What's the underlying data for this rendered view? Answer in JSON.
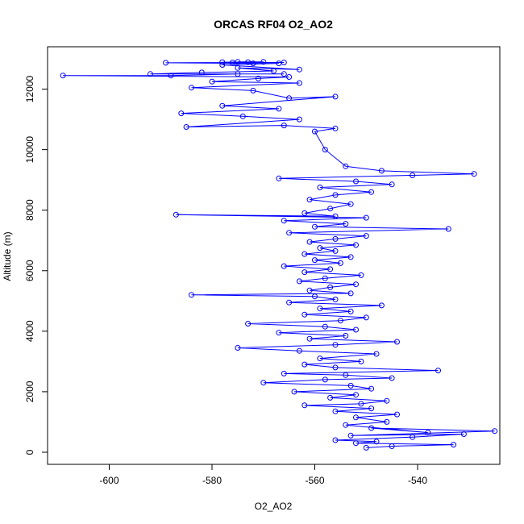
{
  "chart_data": {
    "type": "scatter",
    "title": "ORCAS RF04 O2_AO2",
    "xlabel": "O2_AO2",
    "ylabel": "Altitude (m)",
    "xlim": [
      -612,
      -524
    ],
    "ylim": [
      -400,
      13400
    ],
    "x_ticks": [
      -600,
      -580,
      -560,
      -540
    ],
    "x_tick_labels": [
      "-600",
      "-580",
      "-560",
      "-540"
    ],
    "y_ticks": [
      0,
      2000,
      4000,
      6000,
      8000,
      10000,
      12000
    ],
    "y_tick_labels": [
      "0",
      "2000",
      "4000",
      "6000",
      "8000",
      "10000",
      "12000"
    ],
    "grid": false,
    "series": [
      {
        "color": "#0000ff",
        "marker": "open-circle",
        "connected": true,
        "points": [
          [
            -550,
            150
          ],
          [
            -545,
            200
          ],
          [
            -533,
            250
          ],
          [
            -552,
            300
          ],
          [
            -548,
            350
          ],
          [
            -556,
            400
          ],
          [
            -541,
            500
          ],
          [
            -531,
            600
          ],
          [
            -553,
            550
          ],
          [
            -525,
            700
          ],
          [
            -549,
            800
          ],
          [
            -538,
            650
          ],
          [
            -554,
            900
          ],
          [
            -546,
            1000
          ],
          [
            -552,
            1150
          ],
          [
            -544,
            1250
          ],
          [
            -556,
            1350
          ],
          [
            -549,
            1450
          ],
          [
            -562,
            1550
          ],
          [
            -551,
            1600
          ],
          [
            -546,
            1700
          ],
          [
            -557,
            1800
          ],
          [
            -552,
            1900
          ],
          [
            -564,
            2000
          ],
          [
            -549,
            2100
          ],
          [
            -553,
            2200
          ],
          [
            -570,
            2300
          ],
          [
            -558,
            2400
          ],
          [
            -545,
            2450
          ],
          [
            -554,
            2550
          ],
          [
            -566,
            2600
          ],
          [
            -536,
            2700
          ],
          [
            -556,
            2800
          ],
          [
            -562,
            2900
          ],
          [
            -551,
            3000
          ],
          [
            -559,
            3100
          ],
          [
            -548,
            3250
          ],
          [
            -563,
            3350
          ],
          [
            -575,
            3450
          ],
          [
            -556,
            3550
          ],
          [
            -544,
            3650
          ],
          [
            -561,
            3750
          ],
          [
            -554,
            3850
          ],
          [
            -567,
            3950
          ],
          [
            -552,
            4050
          ],
          [
            -558,
            4150
          ],
          [
            -573,
            4250
          ],
          [
            -555,
            4350
          ],
          [
            -550,
            4450
          ],
          [
            -562,
            4550
          ],
          [
            -553,
            4650
          ],
          [
            -559,
            4750
          ],
          [
            -547,
            4850
          ],
          [
            -565,
            4950
          ],
          [
            -556,
            5050
          ],
          [
            -560,
            5150
          ],
          [
            -584,
            5200
          ],
          [
            -553,
            5250
          ],
          [
            -561,
            5350
          ],
          [
            -557,
            5450
          ],
          [
            -552,
            5550
          ],
          [
            -563,
            5650
          ],
          [
            -558,
            5750
          ],
          [
            -551,
            5850
          ],
          [
            -562,
            5950
          ],
          [
            -557,
            6050
          ],
          [
            -566,
            6150
          ],
          [
            -555,
            6250
          ],
          [
            -560,
            6350
          ],
          [
            -553,
            6450
          ],
          [
            -562,
            6550
          ],
          [
            -556,
            6650
          ],
          [
            -559,
            6750
          ],
          [
            -552,
            6850
          ],
          [
            -561,
            6950
          ],
          [
            -556,
            7050
          ],
          [
            -550,
            7150
          ],
          [
            -565,
            7250
          ],
          [
            -534,
            7380
          ],
          [
            -560,
            7450
          ],
          [
            -554,
            7550
          ],
          [
            -566,
            7650
          ],
          [
            -550,
            7750
          ],
          [
            -587,
            7850
          ],
          [
            -556,
            7800
          ],
          [
            -562,
            7900
          ],
          [
            -557,
            8050
          ],
          [
            -553,
            8200
          ],
          [
            -561,
            8350
          ],
          [
            -556,
            8500
          ],
          [
            -549,
            8600
          ],
          [
            -559,
            8750
          ],
          [
            -545,
            8850
          ],
          [
            -552,
            8950
          ],
          [
            -567,
            9050
          ],
          [
            -541,
            9150
          ],
          [
            -529,
            9200
          ],
          [
            -547,
            9300
          ],
          [
            -554,
            9450
          ],
          [
            -558,
            10000
          ],
          [
            -560,
            10600
          ],
          [
            -556,
            10700
          ],
          [
            -566,
            10800
          ],
          [
            -585,
            10750
          ],
          [
            -563,
            11000
          ],
          [
            -574,
            11100
          ],
          [
            -586,
            11200
          ],
          [
            -567,
            11350
          ],
          [
            -578,
            11450
          ],
          [
            -556,
            11750
          ],
          [
            -565,
            11700
          ],
          [
            -572,
            11950
          ],
          [
            -584,
            12050
          ],
          [
            -563,
            12200
          ],
          [
            -580,
            12250
          ],
          [
            -571,
            12350
          ],
          [
            -565,
            12400
          ],
          [
            -609,
            12450
          ],
          [
            -588,
            12450
          ],
          [
            -575,
            12500
          ],
          [
            -566,
            12500
          ],
          [
            -592,
            12500
          ],
          [
            -582,
            12550
          ],
          [
            -568,
            12600
          ],
          [
            -575,
            12700
          ],
          [
            -563,
            12650
          ],
          [
            -578,
            12800
          ],
          [
            -567,
            12850
          ],
          [
            -572,
            12850
          ],
          [
            -589,
            12870
          ],
          [
            -576,
            12880
          ],
          [
            -566,
            12880
          ],
          [
            -573,
            12890
          ],
          [
            -578,
            12890
          ],
          [
            -570,
            12900
          ],
          [
            -575,
            12900
          ]
        ]
      }
    ]
  }
}
